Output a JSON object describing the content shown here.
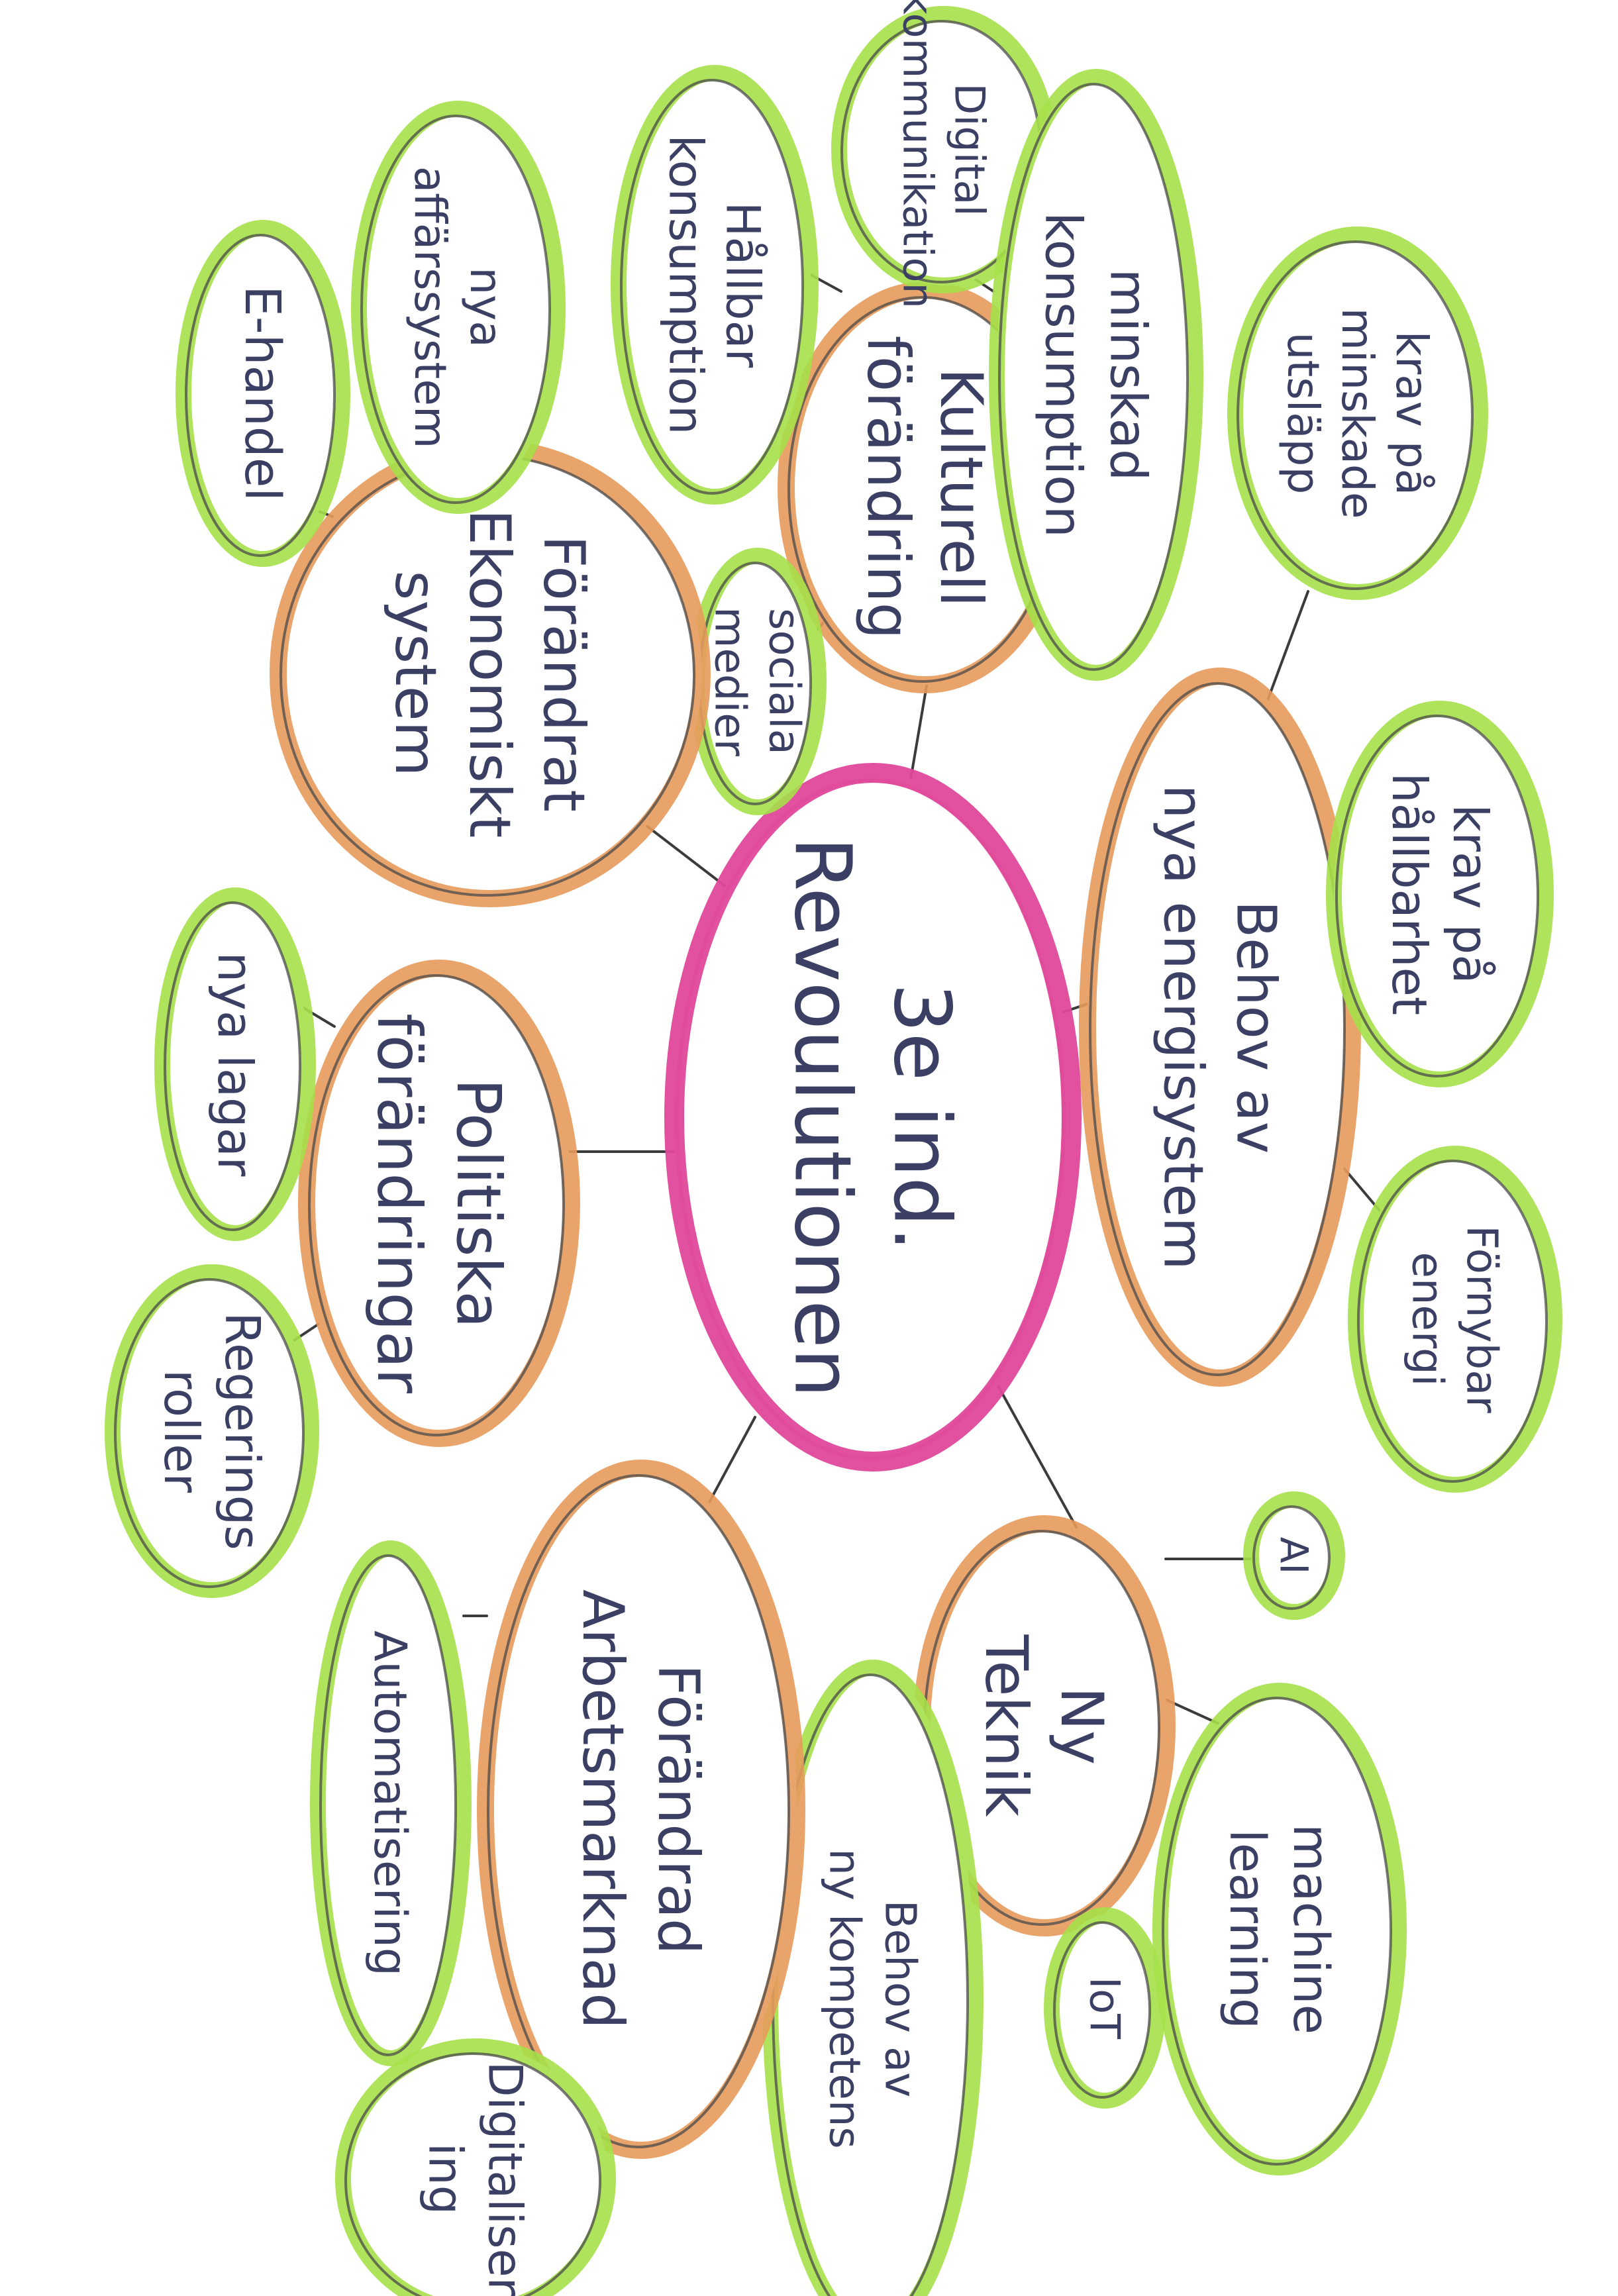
{
  "palette": {
    "center_outline": "#e0489a",
    "primary_outline": "#e79a5c",
    "secondary_outline": "#a6e04a",
    "inner_outline": "#4a4a4a",
    "text": "#3a3f63",
    "connector": "#3b3b3b"
  },
  "center": {
    "lines": [
      "3e ind.",
      "Revoulutionen"
    ]
  },
  "branches": {
    "kulturell": {
      "lines": [
        "Kulturell",
        "förändring"
      ],
      "children": {
        "digital": {
          "lines": [
            "Digital",
            "kommunikation"
          ]
        },
        "hallbar": {
          "lines": [
            "Hållbar",
            "konsumption"
          ]
        },
        "minskad": {
          "lines": [
            "minskad",
            "konsumption"
          ]
        },
        "sociala": {
          "lines": [
            "sociala",
            "medier"
          ]
        }
      }
    },
    "ekonomiskt": {
      "lines": [
        "Förändrat",
        "Ekonomiskt",
        "system"
      ],
      "children": {
        "affarssystem": {
          "lines": [
            "nya",
            "affärssystem"
          ]
        },
        "ehandel": {
          "lines": [
            "E-handel"
          ]
        }
      }
    },
    "energi": {
      "lines": [
        "Behov av",
        "nya energisystem"
      ],
      "children": {
        "utslapp": {
          "lines": [
            "krav på",
            "minskade",
            "utsläpp"
          ]
        },
        "hallbarhet": {
          "lines": [
            "krav på",
            "hållbarhet"
          ]
        },
        "fornybar": {
          "lines": [
            "Förnybar",
            "energi"
          ]
        }
      }
    },
    "politiska": {
      "lines": [
        "Politiska",
        "förändringar"
      ],
      "children": {
        "lagar": {
          "lines": [
            "nya lagar"
          ]
        },
        "regeringsroller": {
          "lines": [
            "Regerings",
            "roller"
          ]
        }
      }
    },
    "teknik": {
      "lines": [
        "Ny",
        "Teknik"
      ],
      "children": {
        "ai": {
          "lines": [
            "AI"
          ]
        },
        "ml": {
          "lines": [
            "machine",
            "learning"
          ]
        },
        "iot": {
          "lines": [
            "IoT"
          ]
        },
        "kompetens": {
          "lines": [
            "Behov av",
            "ny kompetens"
          ]
        }
      }
    },
    "arbetsmarknad": {
      "lines": [
        "Förändrad",
        "Arbetsmarknad"
      ],
      "children": {
        "automatisering": {
          "lines": [
            "Automatisering"
          ]
        },
        "digitalisering": {
          "lines": [
            "Digitaliser",
            "ing"
          ]
        }
      }
    }
  }
}
